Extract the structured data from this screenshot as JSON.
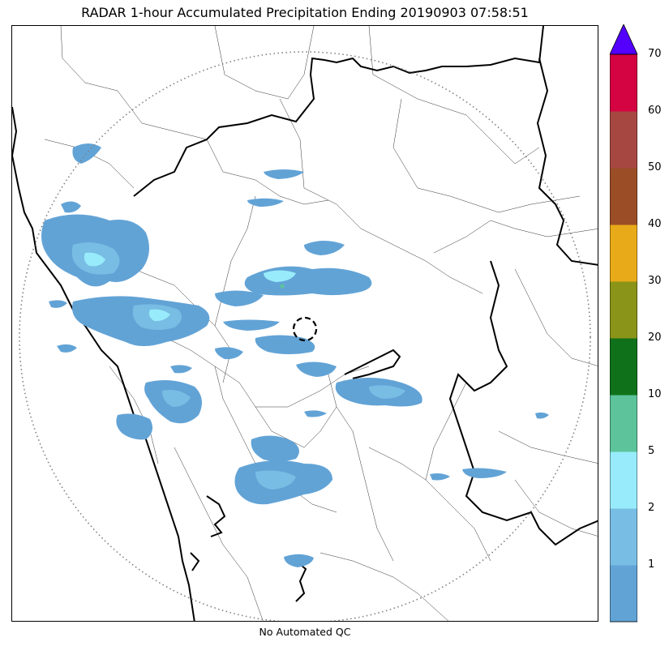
{
  "title": "RADAR 1-hour Accumulated Precipitation Ending 20190903 07:58:51",
  "footer": "No Automated QC",
  "colorbar": {
    "levels": [
      "1",
      "2",
      "5",
      "10",
      "20",
      "30",
      "40",
      "50",
      "60",
      "70"
    ],
    "colors": [
      "#62a3d6",
      "#78bde4",
      "#98ebfa",
      "#5cc39b",
      "#0f7119",
      "#8a9419",
      "#e8aa18",
      "#9b4e26",
      "#a74742",
      "#d40342"
    ],
    "extend_color": "#5300ff"
  },
  "map": {
    "radar_site": "dashed circle marker at radar location",
    "range_ring": "dotted circle marking radar coverage"
  }
}
